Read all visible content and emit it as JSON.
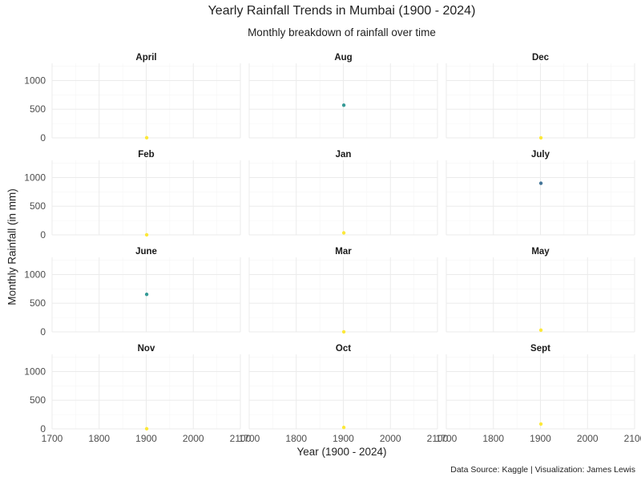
{
  "chart_data": {
    "type": "scatter",
    "title": "Yearly Rainfall Trends in Mumbai (1900 - 2024)",
    "subtitle": "Monthly breakdown of rainfall over time",
    "xlabel": "Year (1900 - 2024)",
    "ylabel": "Monthly Rainfall (in mm)",
    "caption": "Data Source: Kaggle | Visualization: James Lewis",
    "xlim": [
      1700,
      2100
    ],
    "ylim": [
      0,
      1300
    ],
    "x_ticks": [
      1700,
      1800,
      1900,
      2000,
      2100
    ],
    "y_ticks": [
      0,
      500,
      1000
    ],
    "grid": true,
    "facets": [
      {
        "panel": "April",
        "points": [
          {
            "x": 1901,
            "y": 3
          }
        ]
      },
      {
        "panel": "Aug",
        "points": [
          {
            "x": 1901,
            "y": 570
          }
        ]
      },
      {
        "panel": "Dec",
        "points": [
          {
            "x": 1901,
            "y": 1
          }
        ]
      },
      {
        "panel": "Feb",
        "points": [
          {
            "x": 1901,
            "y": 1
          }
        ]
      },
      {
        "panel": "Jan",
        "points": [
          {
            "x": 1901,
            "y": 35
          }
        ]
      },
      {
        "panel": "July",
        "points": [
          {
            "x": 1901,
            "y": 900
          }
        ]
      },
      {
        "panel": "June",
        "points": [
          {
            "x": 1901,
            "y": 655
          }
        ]
      },
      {
        "panel": "Mar",
        "points": [
          {
            "x": 1901,
            "y": 1
          }
        ]
      },
      {
        "panel": "May",
        "points": [
          {
            "x": 1901,
            "y": 30
          }
        ]
      },
      {
        "panel": "Nov",
        "points": [
          {
            "x": 1901,
            "y": 3
          }
        ]
      },
      {
        "panel": "Oct",
        "points": [
          {
            "x": 1901,
            "y": 25
          }
        ]
      },
      {
        "panel": "Sept",
        "points": [
          {
            "x": 1901,
            "y": 85
          }
        ]
      }
    ],
    "colors": {
      "low": "#fde725",
      "mid": "#21918c",
      "high": "#31688e",
      "grid_major": "#ebebeb",
      "grid_minor": "#f5f5f5"
    }
  }
}
